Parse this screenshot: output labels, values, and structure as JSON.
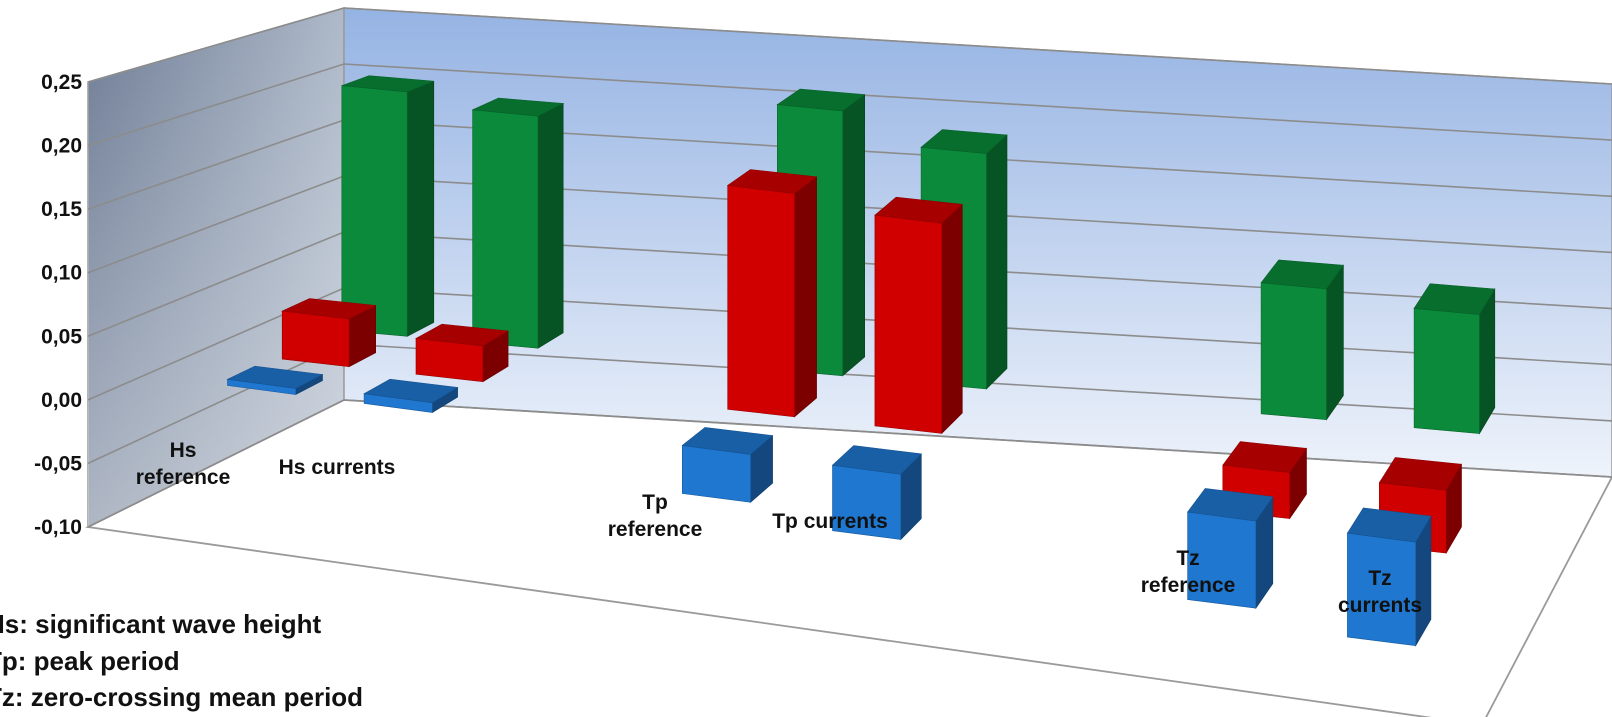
{
  "chart_data": {
    "type": "bar",
    "subtype": "3d-clustered-column",
    "categories": [
      "Hs reference",
      "Hs currents",
      "Tp reference",
      "Tp currents",
      "Tz reference",
      "Tz currents"
    ],
    "category_labels": [
      [
        "Hs",
        "reference"
      ],
      [
        "Hs currents"
      ],
      [
        "Tp",
        "reference"
      ],
      [
        "Tp currents"
      ],
      [
        "Tz",
        "reference"
      ],
      [
        "Tz",
        "currents"
      ]
    ],
    "series": [
      {
        "color": "#1f77d0",
        "values": [
          0.005,
          0.008,
          -0.04,
          -0.055,
          -0.075,
          -0.09
        ]
      },
      {
        "color": "#d00000",
        "values": [
          0.04,
          0.03,
          0.19,
          0.18,
          -0.04,
          -0.055
        ]
      },
      {
        "color": "#0a8a3a",
        "values": [
          0.21,
          0.2,
          0.23,
          0.205,
          0.115,
          0.105
        ]
      }
    ],
    "ylim": [
      -0.1,
      0.25
    ],
    "yticks": [
      "0,25",
      "0,20",
      "0,15",
      "0,10",
      "0,05",
      "0,00",
      "-0,05",
      "-0,10"
    ],
    "grid": true,
    "xlabel": "",
    "ylabel": "",
    "title": ""
  },
  "notes": [
    "Hs: significant wave height",
    "Tp: peak period",
    "Tz: zero-crossing mean period"
  ]
}
